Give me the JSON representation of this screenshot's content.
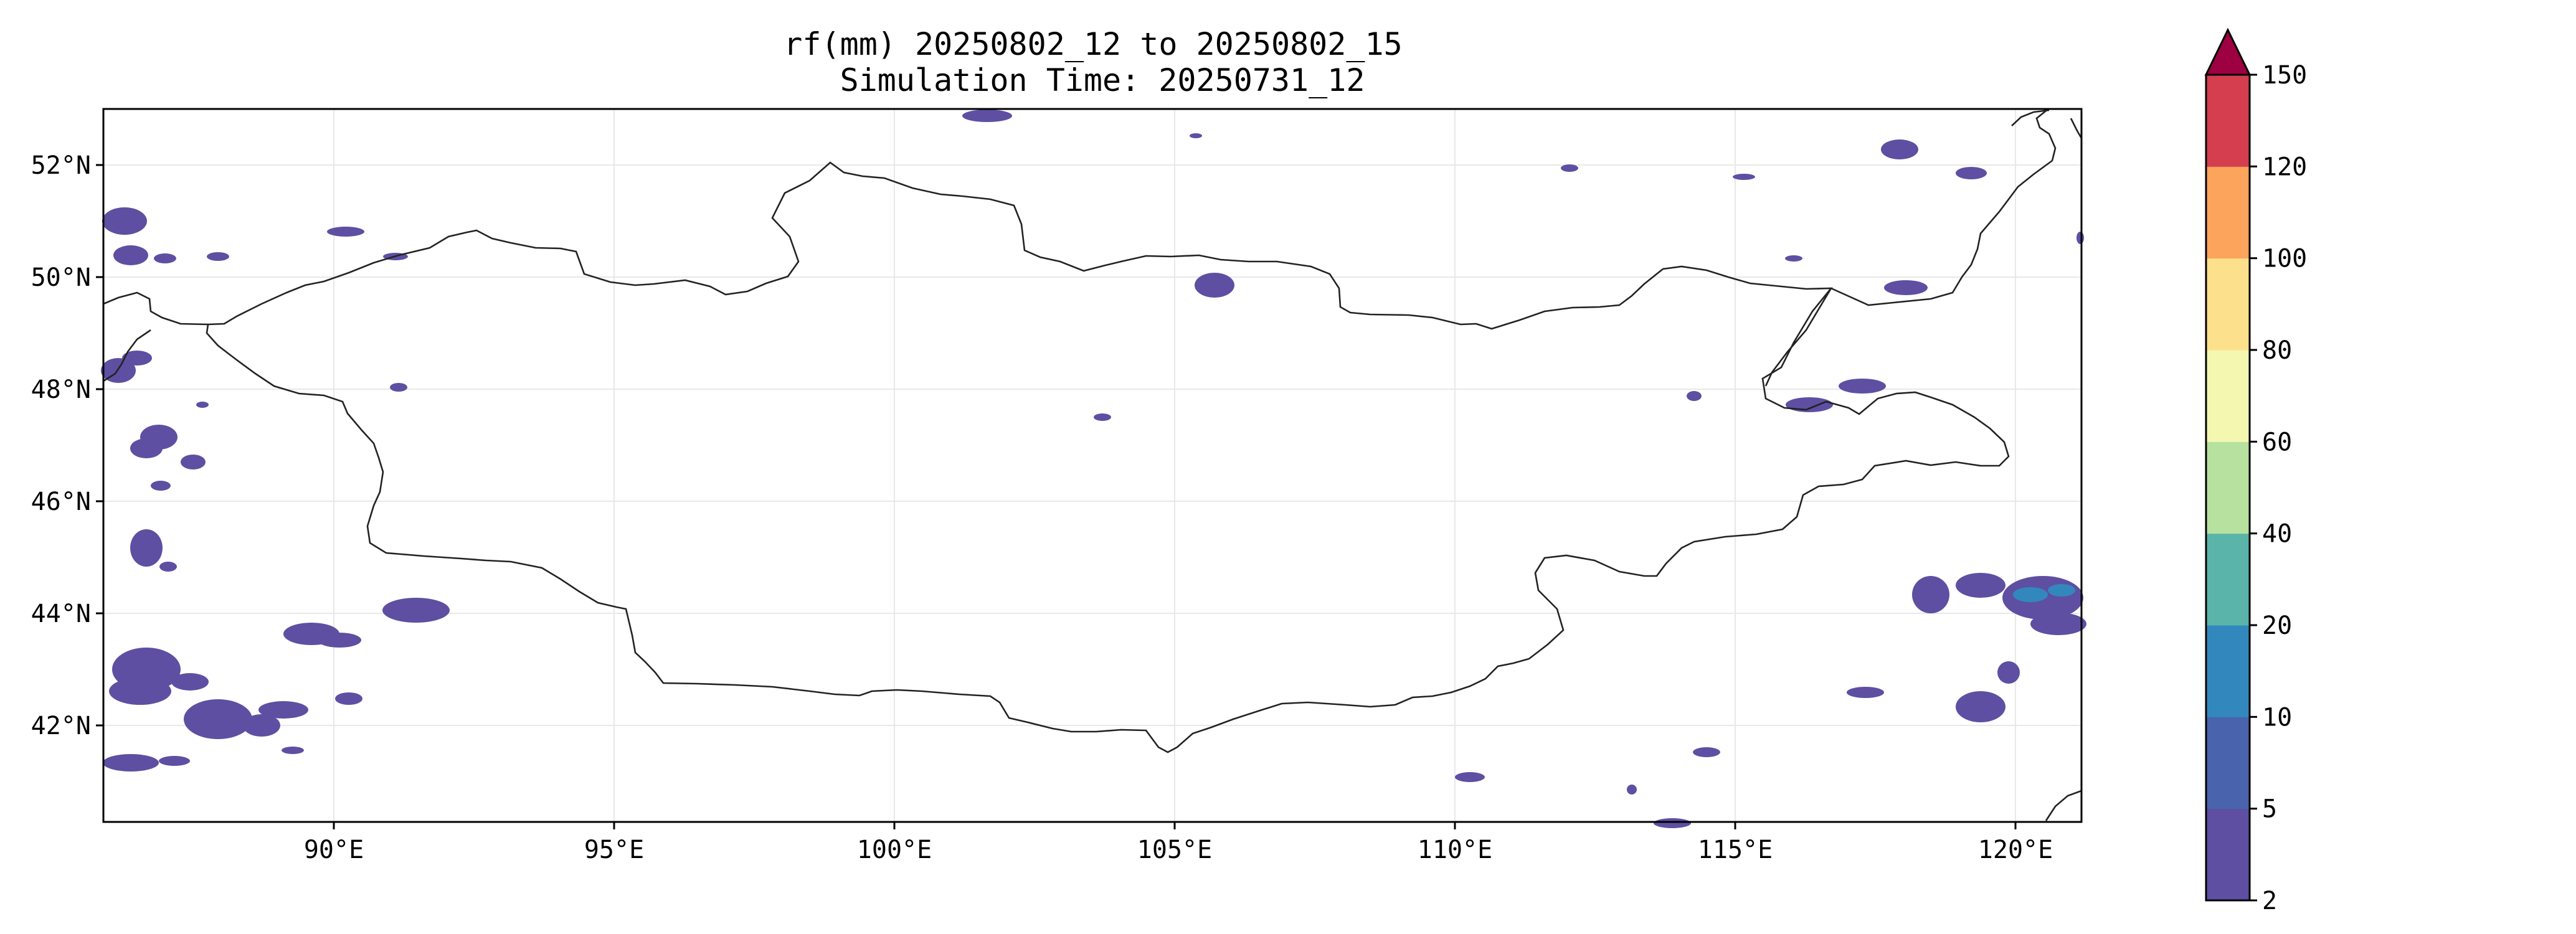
{
  "title": {
    "line1": "rf(mm) 20250802_12 to 20250802_15",
    "line2": "Simulation Time: 20250731_12"
  },
  "chart_data": {
    "type": "heatmap",
    "variable": "rf(mm)",
    "x_ticks": [
      "90°E",
      "95°E",
      "100°E",
      "105°E",
      "110°E",
      "115°E",
      "120°E"
    ],
    "y_ticks": [
      "52°N",
      "50°N",
      "48°N",
      "46°N",
      "44°N",
      "42°N"
    ],
    "colorbar": {
      "levels": [
        "2",
        "5",
        "10",
        "20",
        "40",
        "60",
        "80",
        "100",
        "120",
        "150"
      ],
      "colors": [
        "#5e4fa2",
        "#4a63ad",
        "#3288bd",
        "#5ab4a9",
        "#b7e19f",
        "#f3f7b0",
        "#fde08b",
        "#fca35c",
        "#d53e4f"
      ],
      "extend_color": "#9e0142",
      "extend": "max"
    },
    "rain_color_light": "#5e4fa2",
    "rain_color_medium": "#3288bd",
    "gridlines": true
  }
}
